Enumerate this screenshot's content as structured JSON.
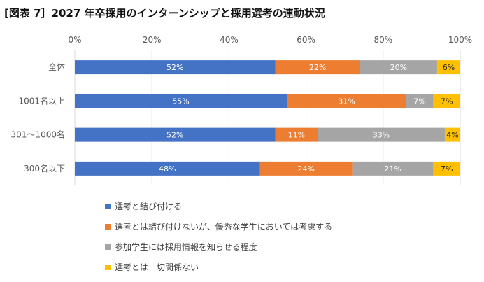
{
  "title": "[図表 7］2027 年卒採用のインターンシップと採用選考の連動状況",
  "chart_data": {
    "type": "bar",
    "orientation": "horizontal",
    "stacked": true,
    "categories": [
      "全体",
      "1001名以上",
      "301〜1000名",
      "300名以下"
    ],
    "series": [
      {
        "name": "選考と結び付ける",
        "color": "#4472C4",
        "values": [
          52,
          55,
          52,
          48
        ],
        "labels": [
          "52%",
          "55%",
          "52%",
          "48%"
        ]
      },
      {
        "name": "選考とは結び付けないが、優秀な学生においては考慮する",
        "color": "#ED7D31",
        "values": [
          22,
          31,
          11,
          24
        ],
        "labels": [
          "22%",
          "31%",
          "11%",
          "24%"
        ]
      },
      {
        "name": "参加学生には採用情報を知らせる程度",
        "color": "#A5A5A5",
        "values": [
          20,
          7,
          33,
          21
        ],
        "labels": [
          "20%",
          "7%",
          "33%",
          "21%"
        ]
      },
      {
        "name": "選考とは一切関係ない",
        "color": "#FFC000",
        "values": [
          6,
          7,
          4,
          7
        ],
        "labels": [
          "6%",
          "7%",
          "4%",
          "7%"
        ]
      }
    ],
    "xlim": [
      0,
      100
    ],
    "ticks": [
      0,
      20,
      40,
      60,
      80,
      100
    ],
    "tick_labels": [
      "0%",
      "20%",
      "40%",
      "60%",
      "80%",
      "100%"
    ],
    "grid": true,
    "legend_position": "bottom"
  }
}
